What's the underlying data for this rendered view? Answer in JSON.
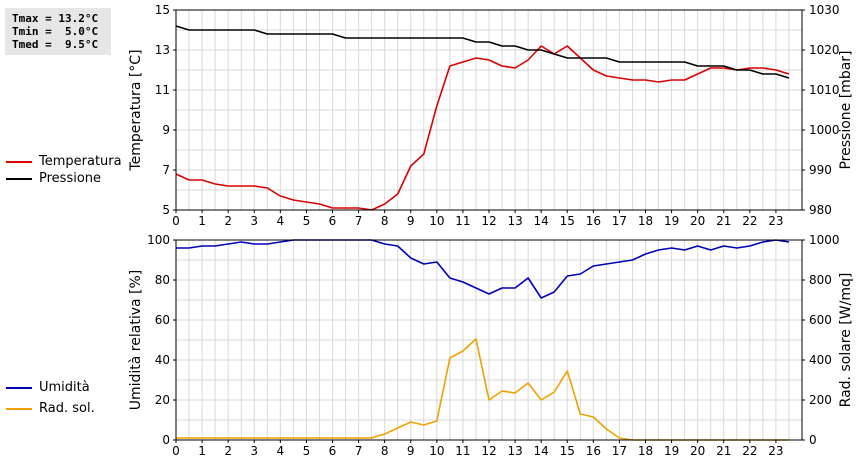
{
  "stats": {
    "tmax": "Tmax = 13.2°C",
    "tmin": "Tmin =  5.0°C",
    "tmed": "Tmed =  9.5°C"
  },
  "legend_top": [
    {
      "label": "Temperatura",
      "color": "#dd0000"
    },
    {
      "label": "Pressione",
      "color": "#000000"
    }
  ],
  "legend_bottom": [
    {
      "label": "Umidità",
      "color": "#0000bb"
    },
    {
      "label": "Rad. sol.",
      "color": "#f0a000"
    }
  ],
  "chart_data": [
    {
      "type": "line",
      "x_ticks": [
        "0",
        "1",
        "2",
        "3",
        "4",
        "5",
        "6",
        "7",
        "8",
        "9",
        "10",
        "11",
        "12",
        "13",
        "14",
        "15",
        "16",
        "17",
        "18",
        "19",
        "20",
        "21",
        "22",
        "23"
      ],
      "xlim": [
        0,
        24
      ],
      "ylabel_left": "Temperatura [°C]",
      "ylabel_right": "Pressione [mbar]",
      "ylim_left": [
        5,
        15
      ],
      "yticks_left": [
        5,
        7,
        9,
        11,
        13,
        15
      ],
      "ylim_right": [
        980,
        1030
      ],
      "yticks_right": [
        980,
        990,
        1000,
        1010,
        1020,
        1030
      ],
      "grid": true,
      "series": [
        {
          "name": "Temperatura",
          "axis": "left",
          "color": "#dd0000",
          "x": [
            0,
            0.5,
            1,
            1.5,
            2,
            2.5,
            3,
            3.5,
            4,
            4.5,
            5,
            5.5,
            6,
            6.5,
            7,
            7.5,
            8,
            8.5,
            9,
            9.5,
            10,
            10.5,
            11,
            11.5,
            12,
            12.5,
            13,
            13.5,
            14,
            14.5,
            15,
            15.5,
            16,
            16.5,
            17,
            17.5,
            18,
            18.5,
            19,
            19.5,
            20,
            20.5,
            21,
            21.5,
            22,
            22.5,
            23,
            23.5
          ],
          "y": [
            6.8,
            6.5,
            6.5,
            6.3,
            6.2,
            6.2,
            6.2,
            6.1,
            5.7,
            5.5,
            5.4,
            5.3,
            5.1,
            5.1,
            5.1,
            5.0,
            5.3,
            5.8,
            7.2,
            7.8,
            10.2,
            12.2,
            12.4,
            12.6,
            12.5,
            12.2,
            12.1,
            12.5,
            13.2,
            12.8,
            13.2,
            12.6,
            12.0,
            11.7,
            11.6,
            11.5,
            11.5,
            11.4,
            11.5,
            11.5,
            11.8,
            12.1,
            12.1,
            12.0,
            12.1,
            12.1,
            12.0,
            11.8
          ]
        },
        {
          "name": "Pressione",
          "axis": "right",
          "color": "#000000",
          "x": [
            0,
            0.5,
            1,
            1.5,
            2,
            2.5,
            3,
            3.5,
            4,
            4.5,
            5,
            5.5,
            6,
            6.5,
            7,
            7.5,
            8,
            8.5,
            9,
            9.5,
            10,
            10.5,
            11,
            11.5,
            12,
            12.5,
            13,
            13.5,
            14,
            14.5,
            15,
            15.5,
            16,
            16.5,
            17,
            17.5,
            18,
            18.5,
            19,
            19.5,
            20,
            20.5,
            21,
            21.5,
            22,
            22.5,
            23,
            23.5
          ],
          "y": [
            1026,
            1025,
            1025,
            1025,
            1025,
            1025,
            1025,
            1024,
            1024,
            1024,
            1024,
            1024,
            1024,
            1023,
            1023,
            1023,
            1023,
            1023,
            1023,
            1023,
            1023,
            1023,
            1023,
            1022,
            1022,
            1021,
            1021,
            1020,
            1020,
            1019,
            1018,
            1018,
            1018,
            1018,
            1017,
            1017,
            1017,
            1017,
            1017,
            1017,
            1016,
            1016,
            1016,
            1015,
            1015,
            1014,
            1014,
            1013
          ]
        }
      ]
    },
    {
      "type": "line",
      "x_ticks": [
        "0",
        "1",
        "2",
        "3",
        "4",
        "5",
        "6",
        "7",
        "8",
        "9",
        "10",
        "11",
        "12",
        "13",
        "14",
        "15",
        "16",
        "17",
        "18",
        "19",
        "20",
        "21",
        "22",
        "23"
      ],
      "xlim": [
        0,
        24
      ],
      "ylabel_left": "Umidità relativa [%]",
      "ylabel_right": "Rad. solare [W/mq]",
      "ylim_left": [
        0,
        100
      ],
      "yticks_left": [
        0,
        20,
        40,
        60,
        80,
        100
      ],
      "ylim_right": [
        0,
        1000
      ],
      "yticks_right": [
        0,
        200,
        400,
        600,
        800,
        1000
      ],
      "grid": true,
      "series": [
        {
          "name": "Umidità",
          "axis": "left",
          "color": "#0000bb",
          "x": [
            0,
            0.5,
            1,
            1.5,
            2,
            2.5,
            3,
            3.5,
            4,
            4.5,
            5,
            5.5,
            6,
            6.5,
            7,
            7.5,
            8,
            8.5,
            9,
            9.5,
            10,
            10.5,
            11,
            11.5,
            12,
            12.5,
            13,
            13.5,
            14,
            14.5,
            15,
            15.5,
            16,
            16.5,
            17,
            17.5,
            18,
            18.5,
            19,
            19.5,
            20,
            20.5,
            21,
            21.5,
            22,
            22.5,
            23,
            23.5
          ],
          "y": [
            96,
            96,
            97,
            97,
            98,
            99,
            98,
            98,
            99,
            100,
            100,
            100,
            100,
            100,
            100,
            100,
            98,
            97,
            91,
            88,
            89,
            81,
            79,
            76,
            73,
            76,
            76,
            81,
            71,
            74,
            82,
            83,
            87,
            88,
            89,
            90,
            93,
            95,
            96,
            95,
            97,
            95,
            97,
            96,
            97,
            99,
            100,
            99
          ]
        },
        {
          "name": "Rad. sol.",
          "axis": "right",
          "color": "#f0a000",
          "x": [
            0,
            0.5,
            1,
            1.5,
            2,
            2.5,
            3,
            3.5,
            4,
            4.5,
            5,
            5.5,
            6,
            6.5,
            7,
            7.5,
            8,
            8.5,
            9,
            9.5,
            10,
            10.5,
            11,
            11.5,
            12,
            12.5,
            13,
            13.5,
            14,
            14.5,
            15,
            15.5,
            16,
            16.5,
            17,
            17.5,
            18,
            18.5,
            19,
            19.5,
            20,
            20.5,
            21,
            21.5,
            22,
            22.5,
            23,
            23.5
          ],
          "y": [
            10,
            10,
            10,
            10,
            10,
            10,
            10,
            10,
            10,
            10,
            10,
            10,
            10,
            10,
            10,
            10,
            30,
            60,
            90,
            75,
            95,
            410,
            445,
            505,
            200,
            245,
            235,
            285,
            200,
            240,
            345,
            130,
            115,
            55,
            10,
            0,
            0,
            0,
            0,
            0,
            0,
            0,
            0,
            0,
            0,
            0,
            0,
            0
          ]
        }
      ]
    }
  ]
}
